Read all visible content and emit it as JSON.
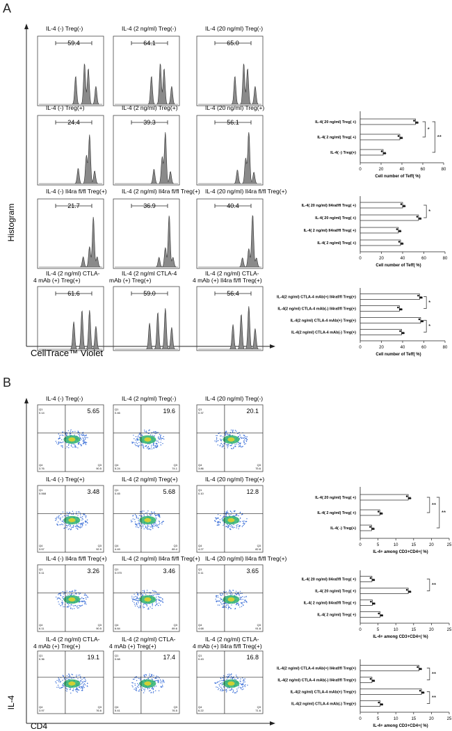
{
  "panels": {
    "a": "A",
    "b": "B"
  },
  "axis_labels": {
    "histogram": "Histogram",
    "celltrace": "CellTrace™ Violet",
    "il4": "IL-4",
    "cd4": "CD4"
  },
  "section_a": {
    "rows": [
      [
        {
          "title": "IL-4  (-)  Treg(-)",
          "value": "59.4"
        },
        {
          "title": "IL-4  (2 ng/ml)  Treg(-)",
          "value": "64.1"
        },
        {
          "title": "IL-4  (20 ng/ml)  Treg(-)",
          "value": "65.0"
        }
      ],
      [
        {
          "title": "IL-4  (-)  Treg(+)",
          "value": "24.4"
        },
        {
          "title": "IL-4  (2 ng/ml)  Treg(+)",
          "value": "39.3"
        },
        {
          "title": "IL-4  (20 ng/ml)  Treg(+)",
          "value": "56.1"
        }
      ],
      [
        {
          "title": "IL-4  (-)  Il4ra fl/fl Treg(+)",
          "value": "21.7"
        },
        {
          "title": "IL-4  (2 ng/ml)  Il4ra fl/fl Treg(+)",
          "value": "36.9"
        },
        {
          "title": "IL-4  (20 ng/ml)  Il4ra fl/fl Treg(+)",
          "value": "40.4"
        }
      ],
      [
        {
          "title": "IL-4    (2 ng/ml)   CTLA-",
          "title2": "4 mAb (+) Treg(+)",
          "value": "61.6"
        },
        {
          "title": "IL-4    (2 ng/ml  CTLA-4",
          "title2": "mAb (+) Treg(+)",
          "value": "59.0"
        },
        {
          "title": "IL-4    (2 ng/ml)    CTLA-",
          "title2": "4 mAb (+) Il4ra fl/fl Treg(+)",
          "value": "56.4"
        }
      ]
    ]
  },
  "section_b": {
    "rows": [
      [
        {
          "title": "IL-4  (-)  Treg(-)",
          "value": "5.65",
          "q1": "Q1\n0.14",
          "q4": "Q4\n3.76",
          "q3": "Q3\n90.5"
        },
        {
          "title": "IL-4  (2 ng/ml)  Treg(-)",
          "value": "19.6",
          "q1": "Q1\n0.46",
          "q4": "Q4\n5.24",
          "q3": "Q3\n74.1"
        },
        {
          "title": "IL-4  (20 ng/ml)  Treg(-)",
          "value": "20.1",
          "q1": "Q1\n0.37",
          "q4": "Q4\n3.86",
          "q3": "Q3\n75.6"
        }
      ],
      [
        {
          "title": "IL-4  (-)  Treg(+)",
          "value": "3.48",
          "q1": "Q1\n0.068",
          "q4": "Q4\n3.57",
          "q3": "Q3\n92.9"
        },
        {
          "title": "IL-4  (2 ng/ml)  Treg(+)",
          "value": "5.68",
          "q1": "Q1\n0.45",
          "q4": "Q4\n4.49",
          "q3": "Q3\n89.4"
        },
        {
          "title": "IL-4  (20 ng/ml)  Treg(+)",
          "value": "12.8",
          "q1": "Q1\n0.10",
          "q4": "Q4\n4.27",
          "q3": "Q3\n82.8"
        }
      ],
      [
        {
          "title": "IL-4  (-)  Il4ra fl/fl Treg(+)",
          "value": "3.26",
          "q1": "Q1\n0.11",
          "q4": "Q4\n6.11",
          "q3": "Q3\n90.5"
        },
        {
          "title": "IL-4  (2 ng/ml)  Il4ra fl/fl Treg(+)",
          "value": "3.46",
          "q1": "Q1\n0.070",
          "q4": "Q4\n6.84",
          "q3": "Q3\n89.6"
        },
        {
          "title": "IL-4  (20 ng/ml)  Il4ra fl/fl Treg(+)",
          "value": "3.65",
          "q1": "Q1\n0.11",
          "q4": "Q4\n4.68",
          "q3": "Q3\n91.8"
        }
      ],
      [
        {
          "title": "IL-4    (2 ng/ml)   CTLA-",
          "title2": "4 mAb (+) Treg(+)",
          "value": "19.1",
          "q1": "Q1\n0.36",
          "q4": "Q4\n3.97",
          "q3": "Q3\n76.6"
        },
        {
          "title": "IL-4    (2 ng/ml)   CTLA-",
          "title2": "4 mAb (+) Treg(+)",
          "value": "17.4",
          "q1": "Q1\n0.68",
          "q4": "Q4\n5.41",
          "q3": "Q3\n76.5"
        },
        {
          "title": "IL-4    (2 ng/ml)   CTLA-",
          "title2": "4 mAb (+) Il4ra fl/fl Treg(+)",
          "value": "16.8",
          "q1": "Q1\n0.43",
          "q4": "Q4\n6.22",
          "q3": "Q3\n71.6"
        }
      ]
    ]
  },
  "chart_data": [
    {
      "type": "bar",
      "orientation": "horizontal",
      "categories": [
        "IL-4( 20 ng/ml) Treg( +)",
        "IL-4( 2 ng/ml) Treg( +)",
        "IL-4( -) Treg(+)"
      ],
      "values": [
        53,
        38,
        22
      ],
      "xlabel": "Cell number of Teff( %)",
      "xlim": [
        0,
        80
      ],
      "xticks": [
        "0",
        "20",
        "40",
        "60",
        "80"
      ],
      "significance": [
        "*",
        "**"
      ]
    },
    {
      "type": "bar",
      "orientation": "horizontal",
      "categories": [
        "IL-4( 20 ng/ml) Il4raf/fl Treg( +)",
        "IL-4( 20 ng/ml) Treg( +)",
        "IL-4( 2 ng/ml) Il4raf/fl Treg( +)",
        "IL-4( 2 ng/ml) Treg( +)"
      ],
      "values": [
        40,
        55,
        36,
        38
      ],
      "xlabel": "Cell number of Teff( %)",
      "xlim": [
        0,
        80
      ],
      "xticks": [
        "0",
        "20",
        "40",
        "60",
        "80"
      ],
      "significance": [
        "*"
      ]
    },
    {
      "type": "bar",
      "orientation": "horizontal",
      "categories": [
        "IL-4(2 ng/ml) CTLA-4 mAb(+) Il4raf/fl Treg(+)",
        "IL-4(2 ng/ml) CTLA-4 mAb(-) Il4raf/fl Treg(+)",
        "IL-4(2 ng/ml) CTLA-4 mAb(+) Treg(+)",
        "IL-4(2 ng/ml) CTLA-4 mAb(-) Treg(+)"
      ],
      "values": [
        56,
        37,
        57,
        39
      ],
      "xlabel": "Cell number of Teff( %)",
      "xlim": [
        0,
        80
      ],
      "xticks": [
        "0",
        "20",
        "40",
        "60",
        "80"
      ],
      "significance": [
        "*",
        "*"
      ]
    },
    {
      "type": "bar",
      "orientation": "horizontal",
      "categories": [
        "IL-4( 20 ng/ml) Treg( +)",
        "IL-4( 2 ng/ml) Treg( +)",
        "IL-4( -) Treg(+)"
      ],
      "values": [
        13.5,
        5.5,
        3.2
      ],
      "xlabel": "IL-4+ among CD3+CD4+( %)",
      "xlim": [
        0,
        25
      ],
      "xticks": [
        "0",
        "5",
        "10",
        "15",
        "20",
        "25"
      ],
      "significance": [
        "**",
        "**"
      ]
    },
    {
      "type": "bar",
      "orientation": "horizontal",
      "categories": [
        "IL-4( 20 ng/ml) Il4raf/fl Treg( +)",
        "IL-4( 20 ng/ml) Treg( +)",
        "IL-4( 2 ng/ml) Il4raf/fl Treg( +)",
        "IL-4( 2 ng/ml) Treg( +)"
      ],
      "values": [
        3.3,
        13.5,
        3.4,
        5.6
      ],
      "xlabel": "IL-4+ among CD3+CD4+( %)",
      "xlim": [
        0,
        25
      ],
      "xticks": [
        "0",
        "5",
        "10",
        "15",
        "20",
        "25"
      ],
      "significance": [
        "**"
      ]
    },
    {
      "type": "bar",
      "orientation": "horizontal",
      "categories": [
        "IL-4(2 ng/ml) CTLA-4 mAb(+) Il4raf/fl Treg(+)",
        "IL-4(2 ng/ml) CTLA-4 mAb(-) Il4raf/fl Treg(+)",
        "IL-4(2 ng/ml) CTLA-4 mAb(+) Treg(+)",
        "IL-4(2 ng/ml) CTLA-4 mAb(-) Treg(+)"
      ],
      "values": [
        16.5,
        3.3,
        17.2,
        5.6
      ],
      "xlabel": "IL-4+ among CD3+CD4+( %)",
      "xlim": [
        0,
        25
      ],
      "xticks": [
        "0",
        "5",
        "10",
        "15",
        "20",
        "25"
      ],
      "significance": [
        "**",
        "**"
      ]
    }
  ]
}
